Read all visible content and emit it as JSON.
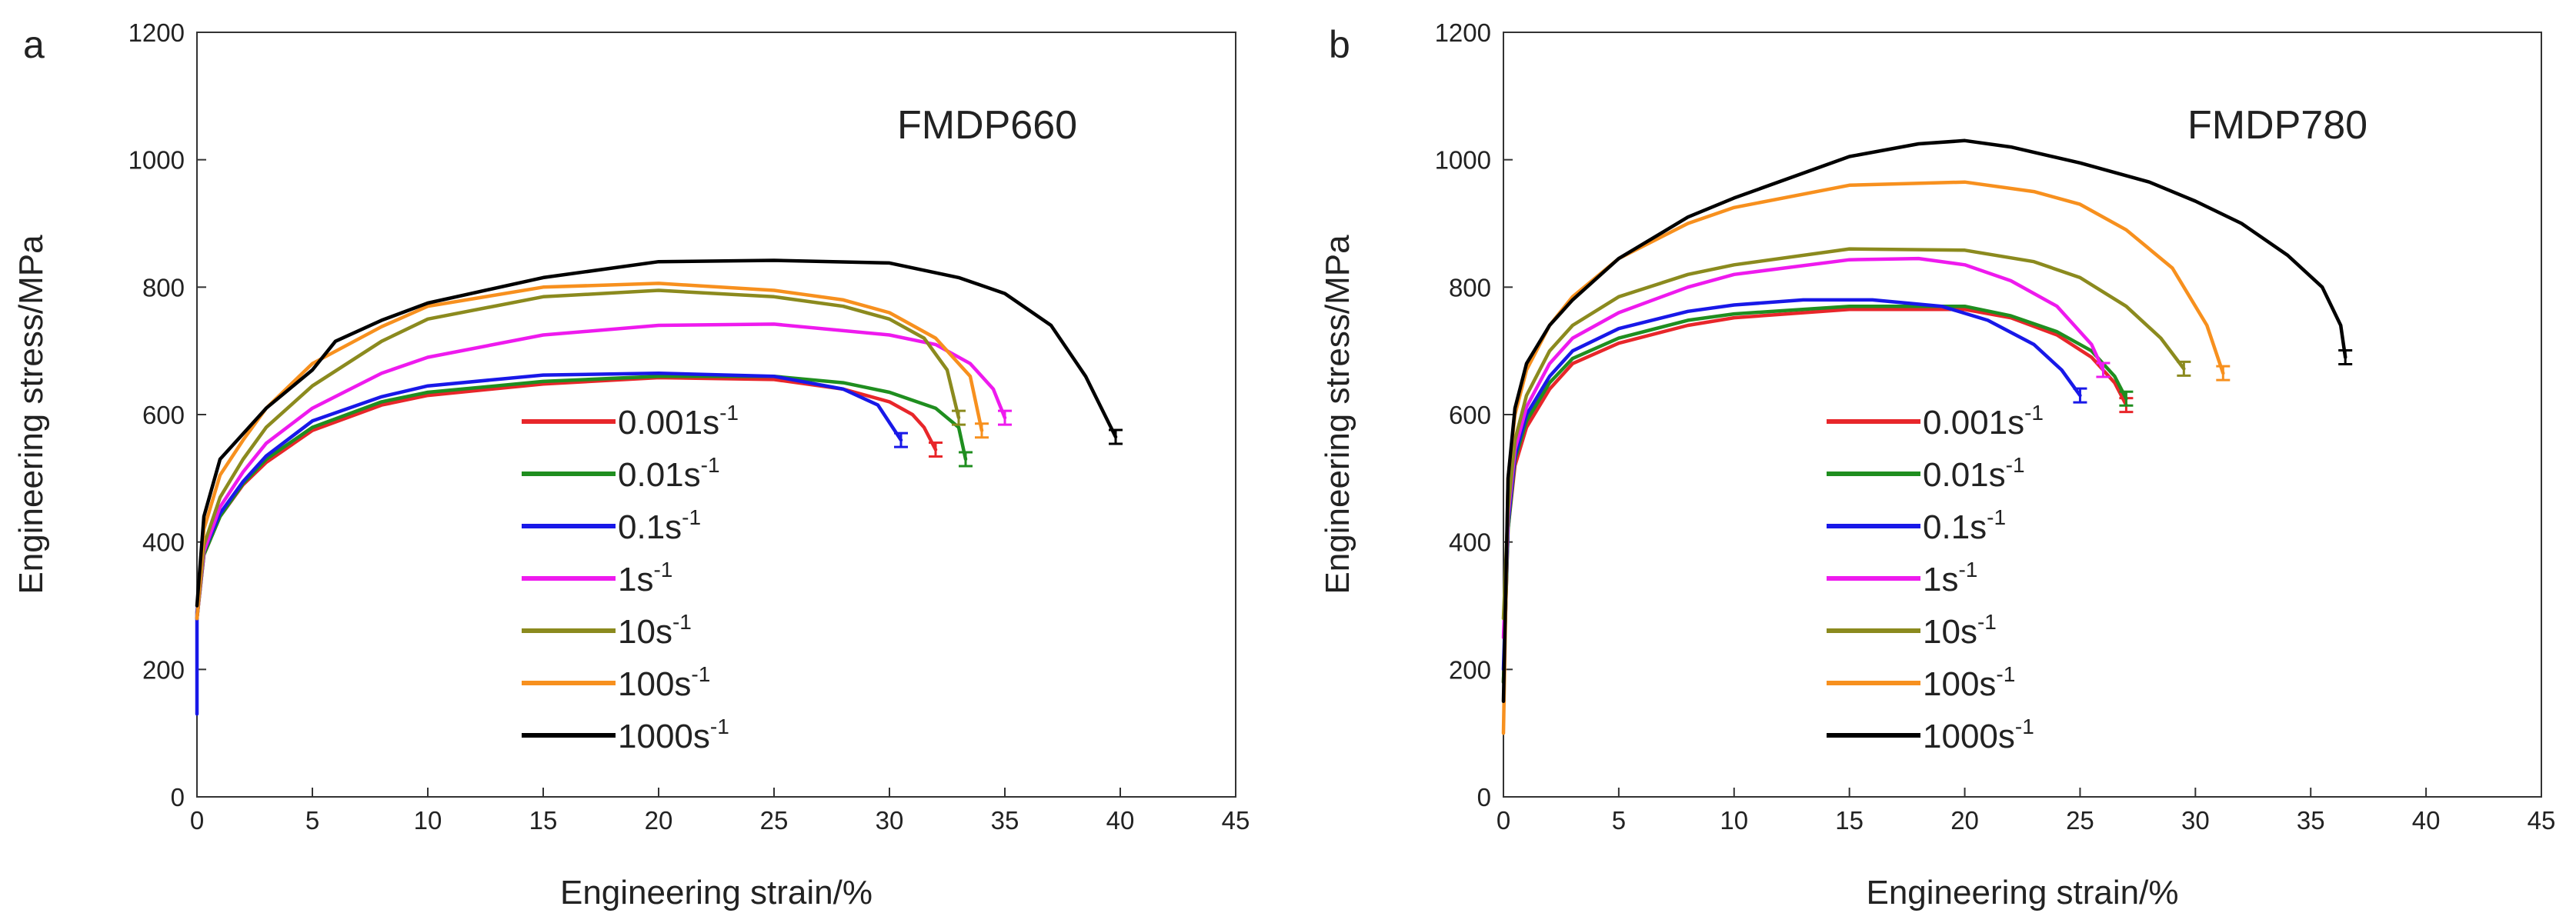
{
  "chart_data": [
    {
      "type": "line",
      "panel": "a",
      "title": "FMDP660",
      "xlabel": "Engineering strain/%",
      "ylabel": "Engineering stress/MPa",
      "xlim": [
        0,
        45
      ],
      "ylim": [
        0,
        1200
      ],
      "xticks": [
        "0",
        "5",
        "10",
        "15",
        "20",
        "25",
        "30",
        "35",
        "40",
        "45"
      ],
      "yticks": [
        "0",
        "200",
        "400",
        "600",
        "800",
        "1000",
        "1200"
      ],
      "legend_position": "center",
      "series": [
        {
          "name": "0.001s-1",
          "legend": {
            "base": "0.001s",
            "sup": "-1"
          },
          "color": "#e8262a",
          "x": [
            0,
            0.3,
            1,
            2,
            3,
            5,
            8,
            10,
            15,
            20,
            25,
            28,
            30,
            31,
            31.5,
            32
          ],
          "y": [
            280,
            380,
            440,
            490,
            525,
            575,
            615,
            630,
            648,
            658,
            655,
            640,
            620,
            600,
            580,
            545
          ]
        },
        {
          "name": "0.01s-1",
          "legend": {
            "base": "0.01s",
            "sup": "-1"
          },
          "color": "#1f8e1f",
          "x": [
            0,
            0.3,
            1,
            2,
            3,
            5,
            8,
            10,
            15,
            20,
            25,
            28,
            30,
            32,
            33,
            33.3
          ],
          "y": [
            280,
            380,
            440,
            492,
            530,
            580,
            620,
            635,
            652,
            660,
            660,
            650,
            635,
            610,
            580,
            530
          ]
        },
        {
          "name": "0.1s-1",
          "legend": {
            "base": "0.1s",
            "sup": "-1"
          },
          "color": "#1818e8",
          "x": [
            0,
            0,
            0.3,
            1,
            2,
            3,
            5,
            8,
            10,
            15,
            20,
            25,
            28,
            29.5,
            30.5
          ],
          "y": [
            130,
            290,
            385,
            445,
            495,
            535,
            590,
            628,
            645,
            662,
            665,
            660,
            640,
            615,
            560
          ]
        },
        {
          "name": "1s-1",
          "legend": {
            "base": "1s",
            "sup": "-1"
          },
          "color": "#ee1aee",
          "x": [
            0,
            0.3,
            1,
            2,
            3,
            5,
            8,
            10,
            15,
            20,
            25,
            30,
            32,
            33.5,
            34.5,
            35
          ],
          "y": [
            280,
            385,
            455,
            510,
            555,
            610,
            665,
            690,
            725,
            740,
            742,
            725,
            710,
            680,
            640,
            595
          ]
        },
        {
          "name": "10s-1",
          "legend": {
            "base": "10s",
            "sup": "-1"
          },
          "color": "#8b8a1e",
          "x": [
            0,
            0.3,
            1,
            2,
            3,
            5,
            8,
            10,
            15,
            20,
            25,
            28,
            30,
            31.5,
            32.5,
            33
          ],
          "y": [
            280,
            395,
            470,
            530,
            580,
            645,
            715,
            750,
            785,
            795,
            785,
            770,
            750,
            720,
            670,
            595
          ]
        },
        {
          "name": "100s-1",
          "legend": {
            "base": "100s",
            "sup": "-1"
          },
          "color": "#f7901e",
          "x": [
            0,
            0.3,
            1,
            2,
            3,
            5,
            8,
            10,
            15,
            20,
            25,
            28,
            30,
            32,
            33.5,
            34
          ],
          "y": [
            280,
            420,
            505,
            560,
            610,
            680,
            738,
            770,
            800,
            806,
            795,
            780,
            760,
            720,
            660,
            575
          ]
        },
        {
          "name": "1000s-1",
          "legend": {
            "base": "1000s",
            "sup": "-1"
          },
          "color": "#000000",
          "x": [
            0,
            0.3,
            1,
            2,
            3,
            5,
            6,
            8,
            10,
            15,
            20,
            25,
            30,
            33,
            35,
            37,
            38.5,
            39.8
          ],
          "y": [
            300,
            440,
            530,
            570,
            610,
            670,
            715,
            748,
            775,
            815,
            840,
            842,
            838,
            815,
            790,
            740,
            660,
            565
          ]
        }
      ]
    },
    {
      "type": "line",
      "panel": "b",
      "title": "FMDP780",
      "xlabel": "Engineering strain/%",
      "ylabel": "Engineering stress/MPa",
      "xlim": [
        0,
        45
      ],
      "ylim": [
        0,
        1200
      ],
      "xticks": [
        "0",
        "5",
        "10",
        "15",
        "20",
        "25",
        "30",
        "35",
        "40",
        "45"
      ],
      "yticks": [
        "0",
        "200",
        "400",
        "600",
        "800",
        "1000",
        "1200"
      ],
      "legend_position": "center",
      "series": [
        {
          "name": "0.001s-1",
          "legend": {
            "base": "0.001s",
            "sup": "-1"
          },
          "color": "#e8262a",
          "x": [
            0,
            0.2,
            0.5,
            1,
            2,
            3,
            5,
            8,
            10,
            15,
            20,
            22,
            24,
            25.5,
            26.5,
            27
          ],
          "y": [
            180,
            420,
            520,
            580,
            640,
            680,
            712,
            740,
            752,
            765,
            765,
            752,
            725,
            690,
            650,
            615
          ]
        },
        {
          "name": "0.01s-1",
          "legend": {
            "base": "0.01s",
            "sup": "-1"
          },
          "color": "#1f8e1f",
          "x": [
            0,
            0.2,
            0.5,
            1,
            2,
            3,
            5,
            8,
            10,
            15,
            20,
            22,
            24,
            25.5,
            26.5,
            27
          ],
          "y": [
            180,
            420,
            530,
            590,
            650,
            688,
            720,
            748,
            758,
            770,
            770,
            755,
            730,
            700,
            660,
            625
          ]
        },
        {
          "name": "0.1s-1",
          "legend": {
            "base": "0.1s",
            "sup": "-1"
          },
          "color": "#1818e8",
          "x": [
            0,
            0.2,
            0.5,
            1,
            2,
            3,
            5,
            8,
            10,
            13,
            16,
            19,
            21,
            23,
            24.2,
            25
          ],
          "y": [
            200,
            430,
            535,
            600,
            660,
            700,
            735,
            762,
            772,
            780,
            780,
            770,
            748,
            710,
            670,
            630
          ]
        },
        {
          "name": "1s-1",
          "legend": {
            "base": "1s",
            "sup": "-1"
          },
          "color": "#ee1aee",
          "x": [
            0,
            0.2,
            0.5,
            1,
            2,
            3,
            5,
            8,
            10,
            15,
            18,
            20,
            22,
            24,
            25.5,
            26
          ],
          "y": [
            250,
            440,
            545,
            612,
            680,
            720,
            760,
            800,
            820,
            843,
            845,
            835,
            810,
            770,
            710,
            670
          ]
        },
        {
          "name": "10s-1",
          "legend": {
            "base": "10s",
            "sup": "-1"
          },
          "color": "#8b8a1e",
          "x": [
            0,
            0.2,
            0.5,
            1,
            2,
            3,
            5,
            8,
            10,
            15,
            20,
            23,
            25,
            27,
            28.5,
            29.5
          ],
          "y": [
            280,
            450,
            560,
            630,
            700,
            740,
            785,
            820,
            835,
            860,
            858,
            840,
            815,
            770,
            720,
            672
          ]
        },
        {
          "name": "100s-1",
          "legend": {
            "base": "100s",
            "sup": "-1"
          },
          "color": "#f7901e",
          "x": [
            0,
            0.2,
            0.5,
            1,
            2,
            3,
            5,
            8,
            10,
            15,
            20,
            23,
            25,
            27,
            29,
            30.5,
            31.2
          ],
          "y": [
            100,
            500,
            600,
            670,
            740,
            785,
            845,
            900,
            925,
            960,
            965,
            950,
            930,
            890,
            830,
            740,
            665
          ]
        },
        {
          "name": "1000s-1",
          "legend": {
            "base": "1000s",
            "sup": "-1"
          },
          "color": "#000000",
          "x": [
            0,
            0.2,
            0.5,
            1,
            2,
            3,
            5,
            8,
            10,
            15,
            18,
            20,
            22,
            25,
            28,
            30,
            32,
            34,
            35.5,
            36.3,
            36.5
          ],
          "y": [
            150,
            500,
            610,
            680,
            740,
            780,
            845,
            910,
            940,
            1005,
            1025,
            1030,
            1020,
            995,
            965,
            935,
            900,
            850,
            800,
            740,
            690
          ]
        }
      ]
    }
  ]
}
